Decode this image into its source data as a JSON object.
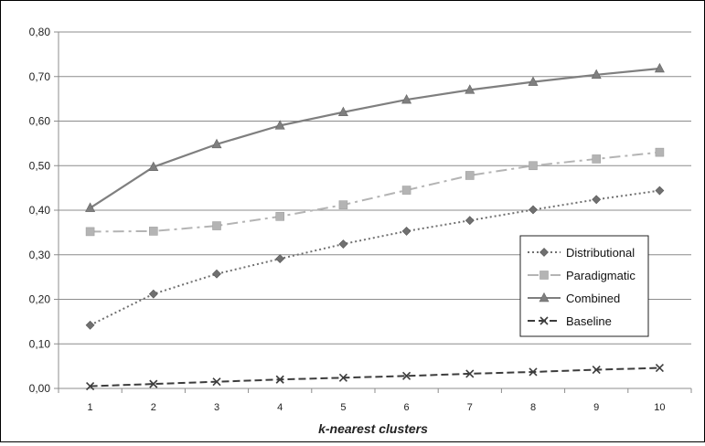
{
  "chart_data": {
    "type": "line",
    "title": "",
    "xlabel": "k-nearest clusters",
    "ylabel": "",
    "x": [
      1,
      2,
      3,
      4,
      5,
      6,
      7,
      8,
      9,
      10
    ],
    "ylim": [
      0,
      0.8
    ],
    "yticks": [
      "0,00",
      "0,10",
      "0,20",
      "0,30",
      "0,40",
      "0,50",
      "0,60",
      "0,70",
      "0,80"
    ],
    "xticks": [
      "1",
      "2",
      "3",
      "4",
      "5",
      "6",
      "7",
      "8",
      "9",
      "10"
    ],
    "grid": "horizontal",
    "legend_position": "right",
    "series": [
      {
        "name": "Distributional",
        "color": "#707070",
        "dash": "dotted",
        "marker": "diamond",
        "values": [
          0.142,
          0.212,
          0.257,
          0.291,
          0.324,
          0.353,
          0.377,
          0.401,
          0.424,
          0.444
        ]
      },
      {
        "name": "Paradigmatic",
        "color": "#b4b4b4",
        "dash": "dashdot",
        "marker": "square",
        "values": [
          0.352,
          0.353,
          0.365,
          0.386,
          0.412,
          0.445,
          0.478,
          0.5,
          0.515,
          0.53
        ]
      },
      {
        "name": "Combined",
        "color": "#7f7f7f",
        "dash": "solid",
        "marker": "triangle",
        "values": [
          0.405,
          0.497,
          0.548,
          0.59,
          0.62,
          0.648,
          0.67,
          0.688,
          0.704,
          0.718
        ]
      },
      {
        "name": "Baseline",
        "color": "#3c3c3c",
        "dash": "dashed",
        "marker": "x",
        "values": [
          0.005,
          0.01,
          0.015,
          0.02,
          0.024,
          0.028,
          0.033,
          0.037,
          0.042,
          0.046
        ]
      }
    ]
  }
}
